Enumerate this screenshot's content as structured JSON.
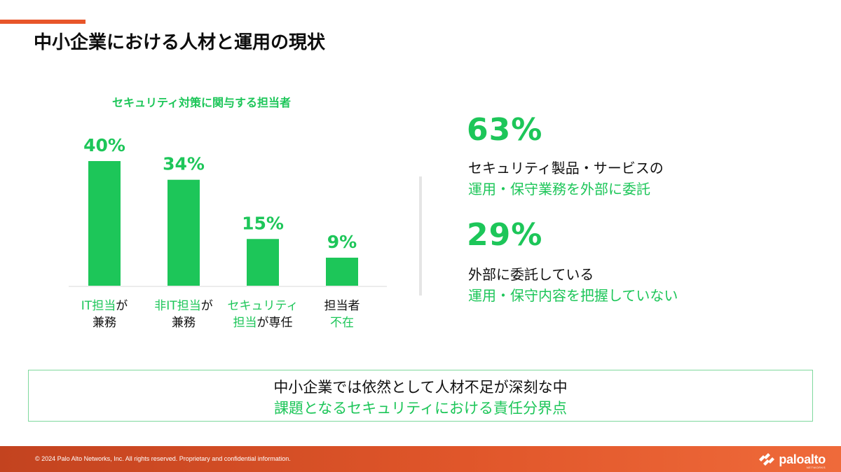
{
  "page": {
    "title": "中小企業における人材と運用の現状"
  },
  "chart_data": {
    "type": "bar",
    "title": "セキュリティ対策に関与する担当者",
    "categories": [
      {
        "parts": [
          [
            {
              "text": "IT担当",
              "color": "green"
            },
            {
              "text": "が",
              "color": "black"
            }
          ],
          [
            {
              "text": "兼務",
              "color": "black"
            }
          ]
        ]
      },
      {
        "parts": [
          [
            {
              "text": "非IT担当",
              "color": "green"
            },
            {
              "text": "が",
              "color": "black"
            }
          ],
          [
            {
              "text": "兼務",
              "color": "black"
            }
          ]
        ]
      },
      {
        "parts": [
          [
            {
              "text": "セキュリティ",
              "color": "green"
            }
          ],
          [
            {
              "text": "担当",
              "color": "green"
            },
            {
              "text": "が専任",
              "color": "black"
            }
          ]
        ]
      },
      {
        "parts": [
          [
            {
              "text": "担当者",
              "color": "black"
            }
          ],
          [
            {
              "text": "不在",
              "color": "green"
            }
          ]
        ]
      }
    ],
    "values": [
      40,
      34,
      15,
      9
    ],
    "value_labels": [
      "40%",
      "34%",
      "15%",
      "9%"
    ],
    "ylim": [
      0,
      40
    ],
    "bar_color": "#1dc659",
    "grid": false
  },
  "stats": [
    {
      "value": "63%",
      "line1": "セキュリティ製品・サービスの",
      "line2": "運用・保守業務を外部に委託"
    },
    {
      "value": "29%",
      "line1": "外部に委託している",
      "line2": "運用・保守内容を把握していない"
    }
  ],
  "callout": {
    "line1": "中小企業では依然として人材不足が深刻な中",
    "line2": "課題となるセキュリティにおける責任分界点"
  },
  "footer": {
    "copyright": "© 2024 Palo Alto Networks, Inc. All rights reserved. Proprietary and confidential information.",
    "logo_text": "paloalto",
    "logo_sub": "NETWORKS"
  },
  "colors": {
    "accent": "#1dc659",
    "brand": "#e8562a"
  }
}
